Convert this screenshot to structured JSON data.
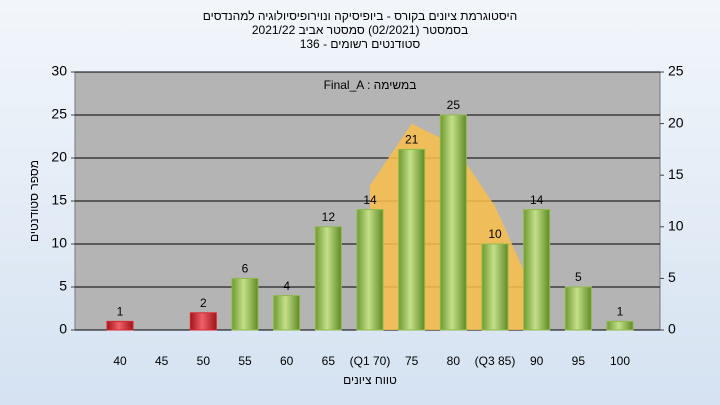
{
  "chart_data": {
    "type": "bar",
    "title": "היסטוגרמת ציונים בקורס - ביופיסיקה ונוירופיסיולוגיה למהנדסים",
    "subtitle": "בסמסטר  (02/2021)  סמסטר אביב 2021/22",
    "subtitle2": "סטודנטים רשומים - 136",
    "annotation": "Final_A : במשימה",
    "x_label": "טווח ציונים",
    "y_label": "מספר סטודנטים",
    "categories": [
      "40",
      "45",
      "50",
      "55",
      "60",
      "65",
      "(Q1 70)",
      "75",
      "80",
      "(Q3 85)",
      "90",
      "95",
      "100"
    ],
    "values": [
      1,
      0,
      2,
      6,
      4,
      12,
      14,
      21,
      25,
      10,
      14,
      5,
      1
    ],
    "value_labels": [
      "1",
      null,
      "2",
      "6",
      "4",
      "12",
      "14",
      "21",
      "25",
      "10",
      "14",
      "5",
      "1"
    ],
    "colors": [
      "#d8262c",
      "#8fba4a",
      "#d8262c",
      "#8fba4a",
      "#8fba4a",
      "#8fba4a",
      "#8fba4a",
      "#8fba4a",
      "#8fba4a",
      "#8fba4a",
      "#8fba4a",
      "#8fba4a",
      "#8fba4a"
    ],
    "area": {
      "color": "#f9c04a",
      "axis": "y2",
      "values": [
        null,
        null,
        null,
        null,
        null,
        null,
        14,
        20,
        18,
        12,
        3,
        null,
        null
      ]
    },
    "ylim": [
      0,
      30
    ],
    "yticks": [
      0,
      5,
      10,
      15,
      20,
      25,
      30
    ],
    "y2lim": [
      0,
      25
    ],
    "y2ticks": [
      0,
      5,
      10,
      15,
      20,
      25
    ],
    "grid": true
  }
}
